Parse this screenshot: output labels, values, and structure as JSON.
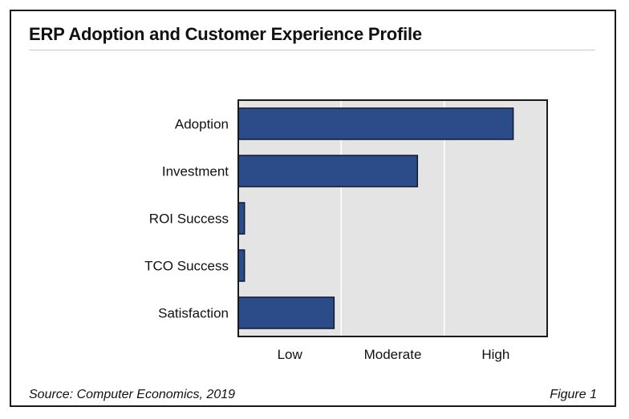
{
  "figure_label": "Figure 1",
  "source": "Source: Computer Economics, 2019",
  "colors": {
    "bar": "#2b4c89",
    "bar_stroke": "#0e1a33",
    "plot_bg": "#e4e4e4",
    "grid": "#ffffff",
    "frame": "#1a1a1a"
  },
  "chart_data": {
    "type": "bar",
    "orientation": "horizontal",
    "title": "ERP Adoption and Customer Experience Profile",
    "categories": [
      "Adoption",
      "Investment",
      "ROI Success",
      "TCO Success",
      "Satisfaction"
    ],
    "values": [
      0.89,
      0.58,
      0.02,
      0.02,
      0.31
    ],
    "x_tick_labels": [
      "Low",
      "Moderate",
      "High"
    ],
    "xlim": [
      0,
      1
    ],
    "grid": true,
    "legend": "none"
  }
}
